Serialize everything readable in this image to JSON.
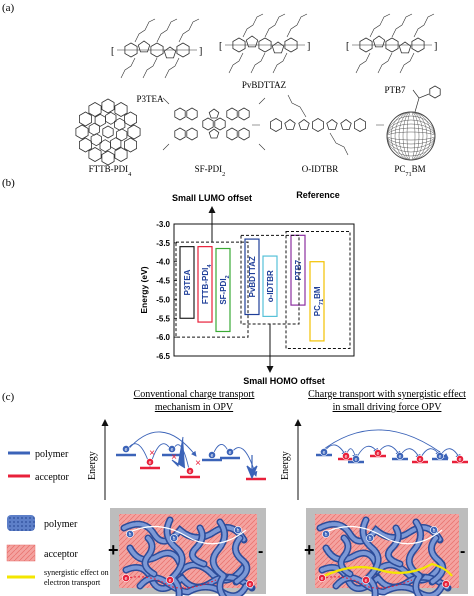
{
  "panel_a": {
    "label": "(a)",
    "molecules": [
      {
        "name": "P3TEA"
      },
      {
        "name": "PvBDTTAZ"
      },
      {
        "name": "PTB7"
      },
      {
        "name": "FTTB-PDI",
        "sub": "4"
      },
      {
        "name": "SF-PDI",
        "sub": "2"
      },
      {
        "name": "O-IDTBR"
      },
      {
        "name": "PC",
        "sub": "71",
        "suffix": "BM"
      }
    ]
  },
  "panel_b": {
    "label": "(b)",
    "ylabel": "Energy (eV)",
    "yticks": [
      "-3.0",
      "-3.5",
      "-4.0",
      "-4.5",
      "-5.0",
      "-5.5",
      "-6.0",
      "-6.5"
    ],
    "ylim": [
      -6.5,
      -3.0
    ],
    "callouts": {
      "lumo": "Small LUMO offset",
      "homo": "Small HOMO offset",
      "reference": "Reference"
    },
    "bars": [
      {
        "label": "P3TEA",
        "lumo": -3.6,
        "homo": -5.5,
        "color": "#222222",
        "text_color": "#1f3f99"
      },
      {
        "label": "FTTB-PDI",
        "sub": "4",
        "lumo": -3.6,
        "homo": -5.6,
        "color": "#e8203a",
        "text_color": "#1f3f99"
      },
      {
        "label": "SF-PDI",
        "sub": "2",
        "lumo": -3.65,
        "homo": -5.85,
        "color": "#3aaa35",
        "text_color": "#1f3f99"
      },
      {
        "label": "PvBDTTAZ",
        "lumo": -3.4,
        "homo": -5.4,
        "color": "#1f3f99",
        "text_color": "#1f3f99"
      },
      {
        "label": "o-IDTBR",
        "lumo": -3.85,
        "homo": -5.45,
        "color": "#56c1d8",
        "text_color": "#1f3f99"
      },
      {
        "label": "PTB7",
        "lumo": -3.3,
        "homo": -5.15,
        "color": "#8b2fa0",
        "text_color": "#1f3f99"
      },
      {
        "label": "PC",
        "sub": "71",
        "suffix": "BM",
        "lumo": -4.0,
        "homo": -6.1,
        "color": "#f2c200",
        "text_color": "#1f3f99"
      }
    ]
  },
  "panel_c": {
    "label": "(c)",
    "title_left": [
      "Conventional charge transport",
      "mechanism in OPV"
    ],
    "title_right": [
      "Charge transport with synergistic effect",
      "in small driving force OPV"
    ],
    "energy_label": "Energy",
    "legend_top": [
      {
        "text": "polymer",
        "color": "#3b63b8"
      },
      {
        "text": "acceptor",
        "color": "#e8203a"
      }
    ],
    "legend_bottom": [
      {
        "text": "polymer"
      },
      {
        "text": "acceptor"
      },
      {
        "text": "synergistic effect on electron transport",
        "lines": [
          "synergistic effect on",
          "electron transport"
        ]
      }
    ],
    "plus_sign": "+",
    "minus_sign": "-",
    "charge_neg": "e",
    "charge_pos": "h",
    "cross": "×"
  },
  "colors": {
    "polymer": "#3b63b8",
    "acceptor": "#e8203a",
    "morph_bg": "#f4a3a0",
    "synergy": "#f3e600",
    "frame": "#444444"
  }
}
